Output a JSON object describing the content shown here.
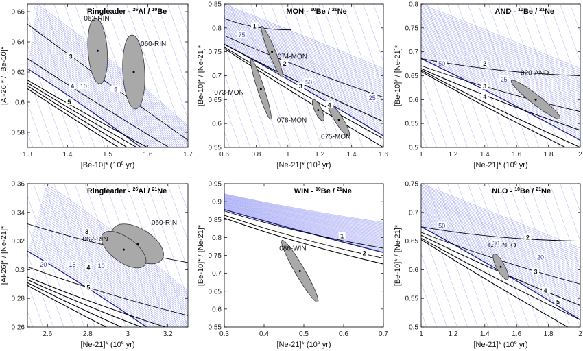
{
  "chart_data": [
    {
      "type": "scatter",
      "title": "Ringleader - 26Al / 10Be",
      "title_parts": [
        "Ringleader - ",
        "26",
        "Al / ",
        "10",
        "Be"
      ],
      "xlabel": "[Be-10]* (10^6 yr)",
      "xlabel_parts": [
        "[Be-10]* (10",
        "6",
        " yr)"
      ],
      "ylabel": "[Al-26]* / [Be-10]*",
      "xlim": [
        1.3,
        1.7
      ],
      "ylim": [
        0.57,
        0.665
      ],
      "xticks": [
        1.3,
        1.4,
        1.5,
        1.6,
        1.7
      ],
      "yticks": [
        0.58,
        0.6,
        0.62,
        0.64,
        0.66
      ],
      "xtick_labels": [
        "1.3",
        "1.4",
        "1.5",
        "1.6",
        "1.7"
      ],
      "ytick_labels": [
        "0.58",
        "0.6",
        "0.62",
        "0.64",
        "0.66"
      ],
      "contour_labels_black": [
        "3",
        "4",
        "5"
      ],
      "contour_labels_blue": [
        "10",
        "5"
      ],
      "samples": [
        {
          "name": "062-RIN",
          "x": 1.475,
          "y": 0.634
        },
        {
          "name": "060-RIN",
          "x": 1.565,
          "y": 0.62
        }
      ]
    },
    {
      "type": "scatter",
      "title": "MON - 10Be / 21Ne",
      "title_parts": [
        "MON - ",
        "10",
        "Be / ",
        "21",
        "Ne"
      ],
      "xlabel": "[Ne-21]* (10^6 yr)",
      "xlabel_parts": [
        "[Ne-21]* (10",
        "6",
        " yr)"
      ],
      "ylabel": "[Be-10]* / [Ne-21]*",
      "xlim": [
        0.6,
        1.6
      ],
      "ylim": [
        0.55,
        0.85
      ],
      "xticks": [
        0.6,
        0.8,
        1.0,
        1.2,
        1.4,
        1.6
      ],
      "yticks": [
        0.55,
        0.6,
        0.65,
        0.7,
        0.75,
        0.8,
        0.85
      ],
      "xtick_labels": [
        "0.6",
        "0.8",
        "1",
        "1.2",
        "1.4",
        "1.6"
      ],
      "ytick_labels": [
        "0.55",
        "0.6",
        "0.65",
        "0.7",
        "0.75",
        "0.8",
        "0.85"
      ],
      "contour_labels_black": [
        "1",
        "2",
        "3",
        "4"
      ],
      "contour_labels_blue": [
        "75",
        "50",
        "25"
      ],
      "samples": [
        {
          "name": "074-MON",
          "x": 0.9,
          "y": 0.75
        },
        {
          "name": "073-MON",
          "x": 0.83,
          "y": 0.672
        },
        {
          "name": "078-MON",
          "x": 1.19,
          "y": 0.628
        },
        {
          "name": "075-MON",
          "x": 1.32,
          "y": 0.608
        }
      ]
    },
    {
      "type": "scatter",
      "title": "AND - 10Be / 21Ne",
      "title_parts": [
        "AND - ",
        "10",
        "Be / ",
        "21",
        "Ne"
      ],
      "xlabel": "[Ne-21]* (10^6 yr)",
      "xlabel_parts": [
        "[Ne-21]* (10",
        "6",
        " yr)"
      ],
      "ylabel": "[Be-10]* / [Ne-21]*",
      "xlim": [
        1.0,
        2.0
      ],
      "ylim": [
        0.5,
        0.8
      ],
      "xticks": [
        1.0,
        1.2,
        1.4,
        1.6,
        1.8,
        2.0
      ],
      "yticks": [
        0.5,
        0.55,
        0.6,
        0.65,
        0.7,
        0.75,
        0.8
      ],
      "xtick_labels": [
        "1",
        "1.2",
        "1.4",
        "1.6",
        "1.8",
        "2"
      ],
      "ytick_labels": [
        "0.5",
        "0.55",
        "0.6",
        "0.65",
        "0.7",
        "0.75",
        "0.8"
      ],
      "contour_labels_black": [
        "2",
        "3",
        "4"
      ],
      "contour_labels_blue": [
        "50",
        "25"
      ],
      "samples": [
        {
          "name": "020-AND",
          "x": 1.72,
          "y": 0.6
        }
      ]
    },
    {
      "type": "scatter",
      "title": "Ringleader - 26Al / 21Ne",
      "title_parts": [
        "Ringleader - ",
        "26",
        "Al / ",
        "21",
        "Ne"
      ],
      "xlabel": "[Ne-21]* (10^6 yr)",
      "xlabel_parts": [
        "[Ne-21]* (10",
        "6",
        " yr)"
      ],
      "ylabel": "[Al-26]* / [Ne-21]*",
      "xlim": [
        2.5,
        3.3
      ],
      "ylim": [
        0.26,
        0.36
      ],
      "xticks": [
        2.6,
        2.8,
        3.0,
        3.2
      ],
      "yticks": [
        0.26,
        0.28,
        0.3,
        0.32,
        0.34,
        0.36
      ],
      "xtick_labels": [
        "2.6",
        "2.8",
        "3",
        "3.2"
      ],
      "ytick_labels": [
        "0.26",
        "0.28",
        "0.3",
        "0.32",
        "0.34",
        "0.36"
      ],
      "contour_labels_black": [
        "3",
        "4",
        "5"
      ],
      "contour_labels_blue": [
        "20",
        "15",
        "10"
      ],
      "samples": [
        {
          "name": "060-RIN",
          "x": 3.05,
          "y": 0.318
        },
        {
          "name": "062-RIN",
          "x": 2.98,
          "y": 0.314
        }
      ]
    },
    {
      "type": "scatter",
      "title": "WIN - 10Be / 21Ne",
      "title_parts": [
        "WIN - ",
        "10",
        "Be / ",
        "21",
        "Ne"
      ],
      "xlabel": "[Ne-21]* (10^6 yr)",
      "xlabel_parts": [
        "[Ne-21]* (10",
        "6",
        " yr)"
      ],
      "ylabel": "[Be-10]* / [Ne-21]*",
      "xlim": [
        0.3,
        0.7
      ],
      "ylim": [
        0.55,
        0.95
      ],
      "xticks": [
        0.3,
        0.4,
        0.5,
        0.6,
        0.7
      ],
      "yticks": [
        0.55,
        0.6,
        0.65,
        0.7,
        0.75,
        0.8,
        0.85,
        0.9,
        0.95
      ],
      "xtick_labels": [
        "0.3",
        "0.4",
        "0.5",
        "0.6",
        "0.7"
      ],
      "ytick_labels": [
        "0.55",
        "0.6",
        "0.65",
        "0.7",
        "0.75",
        "0.8",
        "0.85",
        "0.9",
        "0.95"
      ],
      "contour_labels_black": [
        "1",
        "2"
      ],
      "contour_labels_blue": [],
      "samples": [
        {
          "name": "086-WIN",
          "x": 0.49,
          "y": 0.706
        }
      ]
    },
    {
      "type": "scatter",
      "title": "NLO - 10Be / 21Ne",
      "title_parts": [
        "NLO - ",
        "10",
        "Be / ",
        "21",
        "Ne"
      ],
      "xlabel": "[Ne-21]* (10^6 yr)",
      "xlabel_parts": [
        "[Ne-21]* (10",
        "6",
        " yr)"
      ],
      "ylabel": "[Be-10]* / [Ne-21]*",
      "xlim": [
        1.0,
        2.0
      ],
      "ylim": [
        0.5,
        0.75
      ],
      "xticks": [
        1.0,
        1.2,
        1.4,
        1.6,
        1.8,
        2.0
      ],
      "yticks": [
        0.5,
        0.55,
        0.6,
        0.65,
        0.7,
        0.75
      ],
      "xtick_labels": [
        "1",
        "1.2",
        "1.4",
        "1.6",
        "1.8",
        "2"
      ],
      "ytick_labels": [
        "0.5",
        "0.55",
        "0.6",
        "0.65",
        "0.7",
        "0.75"
      ],
      "contour_labels_black": [
        "2",
        "3",
        "4",
        "5"
      ],
      "contour_labels_blue": [
        "50",
        "30",
        "20"
      ],
      "samples": [
        {
          "name": "009-NLO",
          "x": 1.5,
          "y": 0.605
        }
      ]
    }
  ],
  "colors": {
    "frame": "#000000",
    "contour_black": "#000000",
    "contour_blue_dark": "#1a1f8f",
    "contour_blue_light": "#8a8ff0",
    "ellipse_fill": "#a9a9a9",
    "ellipse_stroke": "#333333"
  }
}
